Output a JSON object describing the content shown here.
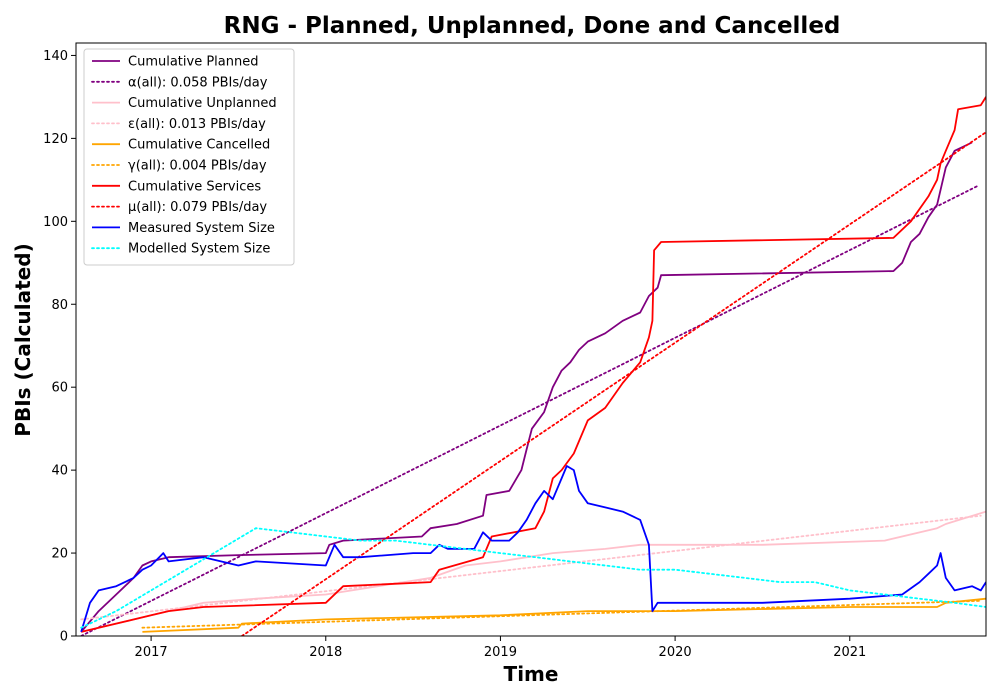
{
  "chart_data": {
    "type": "line",
    "title": "RNG - Planned, Unplanned, Done  and Cancelled",
    "xlabel": "Time",
    "ylabel": "PBIs (Calculated)",
    "xlim": [
      2016.57,
      2021.78
    ],
    "ylim": [
      0,
      143
    ],
    "x_ticks": [
      2017,
      2018,
      2019,
      2020,
      2021
    ],
    "y_ticks": [
      0,
      20,
      40,
      60,
      80,
      100,
      120,
      140
    ],
    "grid": false,
    "legend_position": "top-left",
    "series": [
      {
        "name": "Cumulative Planned",
        "color": "#800080",
        "style": "solid",
        "points": [
          [
            2016.6,
            1
          ],
          [
            2016.7,
            6
          ],
          [
            2016.8,
            10
          ],
          [
            2016.9,
            14
          ],
          [
            2016.95,
            17
          ],
          [
            2017.0,
            18
          ],
          [
            2017.1,
            19
          ],
          [
            2017.5,
            19.5
          ],
          [
            2018.0,
            20
          ],
          [
            2018.02,
            22
          ],
          [
            2018.1,
            23
          ],
          [
            2018.55,
            24
          ],
          [
            2018.6,
            26
          ],
          [
            2018.75,
            27
          ],
          [
            2018.9,
            29
          ],
          [
            2018.92,
            34
          ],
          [
            2019.05,
            35
          ],
          [
            2019.12,
            40
          ],
          [
            2019.15,
            45
          ],
          [
            2019.18,
            50
          ],
          [
            2019.25,
            54
          ],
          [
            2019.3,
            60
          ],
          [
            2019.35,
            64
          ],
          [
            2019.4,
            66
          ],
          [
            2019.45,
            69
          ],
          [
            2019.5,
            71
          ],
          [
            2019.6,
            73
          ],
          [
            2019.7,
            76
          ],
          [
            2019.8,
            78
          ],
          [
            2019.85,
            82
          ],
          [
            2019.9,
            84
          ],
          [
            2019.92,
            87
          ],
          [
            2021.25,
            88
          ],
          [
            2021.3,
            90
          ],
          [
            2021.35,
            95
          ],
          [
            2021.4,
            97
          ],
          [
            2021.45,
            101
          ],
          [
            2021.5,
            104
          ],
          [
            2021.55,
            113
          ],
          [
            2021.6,
            117
          ],
          [
            2021.7,
            119
          ]
        ]
      },
      {
        "name": "α(all): 0.058 PBIs/day",
        "color": "#800080",
        "style": "dotted",
        "points": [
          [
            2016.6,
            0
          ],
          [
            2021.73,
            108.5
          ]
        ]
      },
      {
        "name": "Cumulative Unplanned",
        "color": "#ffc0cb",
        "style": "solid",
        "points": [
          [
            2016.6,
            1
          ],
          [
            2017.0,
            5
          ],
          [
            2017.3,
            8
          ],
          [
            2017.6,
            9
          ],
          [
            2018.0,
            10
          ],
          [
            2018.6,
            14
          ],
          [
            2018.8,
            17
          ],
          [
            2019.0,
            18
          ],
          [
            2019.3,
            20
          ],
          [
            2019.6,
            21
          ],
          [
            2019.8,
            22
          ],
          [
            2020.5,
            22
          ],
          [
            2021.2,
            23
          ],
          [
            2021.5,
            26
          ],
          [
            2021.55,
            27
          ],
          [
            2021.78,
            30
          ]
        ]
      },
      {
        "name": "ε(all): 0.013 PBIs/day",
        "color": "#ffc0cb",
        "style": "dotted",
        "points": [
          [
            2016.6,
            4
          ],
          [
            2021.75,
            29
          ]
        ]
      },
      {
        "name": "Cumulative Cancelled",
        "color": "#ffa500",
        "style": "solid",
        "points": [
          [
            2016.95,
            1
          ],
          [
            2017.5,
            2
          ],
          [
            2017.52,
            3
          ],
          [
            2018.0,
            4
          ],
          [
            2019.0,
            5
          ],
          [
            2019.5,
            6
          ],
          [
            2020.0,
            6
          ],
          [
            2021.0,
            7
          ],
          [
            2021.5,
            7
          ],
          [
            2021.55,
            8
          ],
          [
            2021.78,
            9
          ]
        ]
      },
      {
        "name": "γ(all): 0.004 PBIs/day",
        "color": "#ffa500",
        "style": "dotted",
        "points": [
          [
            2016.95,
            2
          ],
          [
            2021.75,
            8.5
          ]
        ]
      },
      {
        "name": "Cumulative Services",
        "color": "#ff0000",
        "style": "solid",
        "points": [
          [
            2016.6,
            1
          ],
          [
            2017.0,
            5
          ],
          [
            2017.1,
            6
          ],
          [
            2017.3,
            7
          ],
          [
            2018.0,
            8
          ],
          [
            2018.1,
            12
          ],
          [
            2018.6,
            13
          ],
          [
            2018.65,
            16
          ],
          [
            2018.9,
            19
          ],
          [
            2018.95,
            24
          ],
          [
            2019.2,
            26
          ],
          [
            2019.25,
            30
          ],
          [
            2019.3,
            38
          ],
          [
            2019.35,
            40
          ],
          [
            2019.42,
            44
          ],
          [
            2019.5,
            52
          ],
          [
            2019.6,
            55
          ],
          [
            2019.7,
            61
          ],
          [
            2019.8,
            66
          ],
          [
            2019.85,
            72
          ],
          [
            2019.87,
            76
          ],
          [
            2019.88,
            93
          ],
          [
            2019.92,
            95
          ],
          [
            2021.25,
            96
          ],
          [
            2021.35,
            100
          ],
          [
            2021.45,
            106
          ],
          [
            2021.5,
            110
          ],
          [
            2021.52,
            114
          ],
          [
            2021.55,
            117
          ],
          [
            2021.6,
            122
          ],
          [
            2021.62,
            127
          ],
          [
            2021.75,
            128
          ],
          [
            2021.78,
            130
          ]
        ]
      },
      {
        "name": "μ(all): 0.079 PBIs/day",
        "color": "#ff0000",
        "style": "dotted",
        "points": [
          [
            2017.52,
            0
          ],
          [
            2021.78,
            121.5
          ]
        ]
      },
      {
        "name": "Measured System Size",
        "color": "#0000ff",
        "style": "solid",
        "points": [
          [
            2016.6,
            1
          ],
          [
            2016.65,
            8
          ],
          [
            2016.7,
            11
          ],
          [
            2016.8,
            12
          ],
          [
            2016.9,
            14
          ],
          [
            2016.95,
            16
          ],
          [
            2017.0,
            17
          ],
          [
            2017.07,
            20
          ],
          [
            2017.1,
            18
          ],
          [
            2017.3,
            19
          ],
          [
            2017.5,
            17
          ],
          [
            2017.6,
            18
          ],
          [
            2018.0,
            17
          ],
          [
            2018.05,
            22
          ],
          [
            2018.1,
            19
          ],
          [
            2018.2,
            19
          ],
          [
            2018.5,
            20
          ],
          [
            2018.6,
            20
          ],
          [
            2018.65,
            22
          ],
          [
            2018.7,
            21
          ],
          [
            2018.85,
            21
          ],
          [
            2018.9,
            25
          ],
          [
            2018.95,
            23
          ],
          [
            2019.05,
            23
          ],
          [
            2019.1,
            25
          ],
          [
            2019.15,
            28
          ],
          [
            2019.2,
            32
          ],
          [
            2019.25,
            35
          ],
          [
            2019.3,
            33
          ],
          [
            2019.35,
            38
          ],
          [
            2019.38,
            41
          ],
          [
            2019.42,
            40
          ],
          [
            2019.45,
            35
          ],
          [
            2019.5,
            32
          ],
          [
            2019.6,
            31
          ],
          [
            2019.7,
            30
          ],
          [
            2019.8,
            28
          ],
          [
            2019.85,
            22
          ],
          [
            2019.87,
            6
          ],
          [
            2019.9,
            8
          ],
          [
            2020.5,
            8
          ],
          [
            2021.0,
            9
          ],
          [
            2021.3,
            10
          ],
          [
            2021.4,
            13
          ],
          [
            2021.45,
            15
          ],
          [
            2021.5,
            17
          ],
          [
            2021.52,
            20
          ],
          [
            2021.55,
            14
          ],
          [
            2021.6,
            11
          ],
          [
            2021.7,
            12
          ],
          [
            2021.75,
            11
          ],
          [
            2021.78,
            13
          ]
        ]
      },
      {
        "name": "Modelled System Size",
        "color": "#00ffff",
        "style": "dotted",
        "points": [
          [
            2016.6,
            2
          ],
          [
            2016.8,
            6
          ],
          [
            2017.0,
            11
          ],
          [
            2017.2,
            16
          ],
          [
            2017.4,
            21
          ],
          [
            2017.6,
            26
          ],
          [
            2017.8,
            25
          ],
          [
            2018.0,
            24
          ],
          [
            2018.2,
            23
          ],
          [
            2018.4,
            23
          ],
          [
            2018.6,
            22
          ],
          [
            2018.8,
            21
          ],
          [
            2019.0,
            20
          ],
          [
            2019.2,
            19
          ],
          [
            2019.4,
            18
          ],
          [
            2019.6,
            17
          ],
          [
            2019.8,
            16
          ],
          [
            2020.0,
            16
          ],
          [
            2020.2,
            15
          ],
          [
            2020.4,
            14
          ],
          [
            2020.6,
            13
          ],
          [
            2020.8,
            13
          ],
          [
            2021.0,
            11
          ],
          [
            2021.2,
            10
          ],
          [
            2021.4,
            9
          ],
          [
            2021.6,
            8
          ],
          [
            2021.78,
            7
          ]
        ]
      }
    ]
  }
}
